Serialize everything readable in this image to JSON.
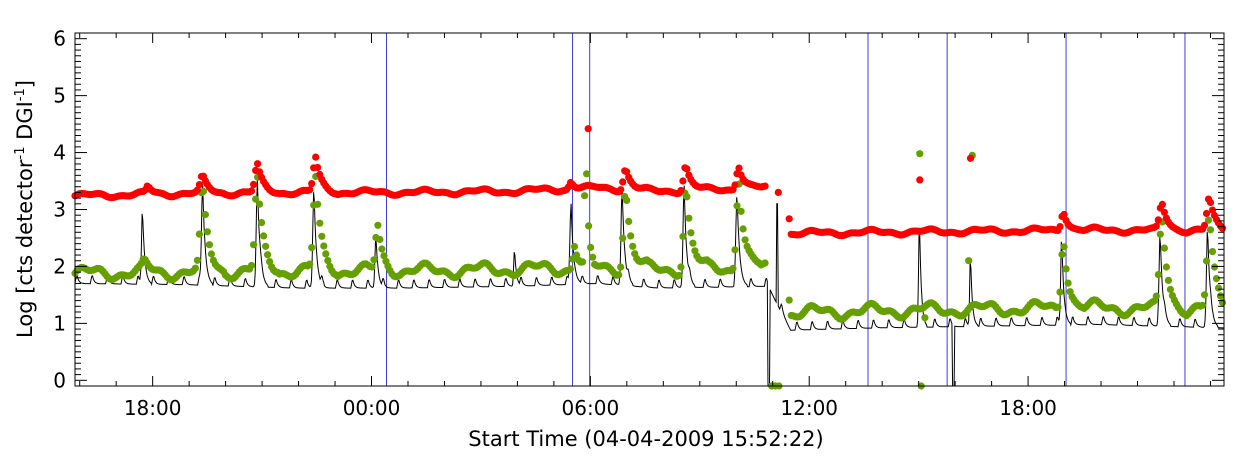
{
  "chart_data": {
    "type": "scatter",
    "title": "",
    "xlabel": "Start Time (04-04-2009 15:52:22)",
    "ylabel_parts": [
      "Log [cts detector",
      "-1",
      " DGI",
      "-1",
      "]"
    ],
    "x_units": "hours since 04-04-2009 15:52:22",
    "xlim": [
      0,
      31.5
    ],
    "ylim": [
      -0.1,
      6.1
    ],
    "x_ticks": [
      {
        "value": 2.1289,
        "label": "18:00"
      },
      {
        "value": 8.1289,
        "label": "00:00"
      },
      {
        "value": 14.1289,
        "label": "06:00"
      },
      {
        "value": 20.1289,
        "label": "12:00"
      },
      {
        "value": 26.1289,
        "label": "18:00"
      }
    ],
    "y_ticks": [
      {
        "value": 0,
        "label": "0"
      },
      {
        "value": 1,
        "label": "1"
      },
      {
        "value": 2,
        "label": "2"
      },
      {
        "value": 3,
        "label": "3"
      },
      {
        "value": 4,
        "label": "4"
      },
      {
        "value": 5,
        "label": "5"
      },
      {
        "value": 6,
        "label": "6"
      }
    ],
    "vertical_lines": [
      8.54,
      13.64,
      14.11,
      21.74,
      23.91,
      27.17,
      30.43
    ],
    "colors": {
      "red": "#ff0000",
      "green": "#66a000",
      "black": "#000000",
      "vline": "#3f3fd8",
      "frame": "#000000"
    },
    "series": [
      {
        "name": "red",
        "style": "dots",
        "baseline": [
          [
            0,
            3.24
          ],
          [
            3.0,
            3.28
          ],
          [
            6.0,
            3.3
          ],
          [
            9.0,
            3.3
          ],
          [
            12.0,
            3.32
          ],
          [
            14.3,
            3.38
          ],
          [
            16.0,
            3.32
          ],
          [
            19.0,
            3.38
          ],
          [
            19.5,
            3.4
          ],
          [
            19.62,
            2.58
          ],
          [
            22.0,
            2.6
          ],
          [
            25.0,
            2.62
          ],
          [
            28.0,
            2.64
          ],
          [
            31.5,
            2.62
          ]
        ],
        "wiggle": 0.035,
        "flares": [
          {
            "t": 2.0,
            "peak": 3.42,
            "w": 0.12
          },
          {
            "t": 3.5,
            "peak": 3.62,
            "w": 0.15
          },
          {
            "t": 5.0,
            "peak": 3.82,
            "w": 0.15
          },
          {
            "t": 6.6,
            "peak": 3.92,
            "w": 0.15
          },
          {
            "t": 13.6,
            "peak": 3.48,
            "w": 0.12
          },
          {
            "t": 15.1,
            "peak": 3.72,
            "w": 0.15
          },
          {
            "t": 16.75,
            "peak": 3.78,
            "w": 0.15
          },
          {
            "t": 18.2,
            "peak": 3.74,
            "w": 0.15
          },
          {
            "t": 27.1,
            "peak": 2.95,
            "w": 0.14
          },
          {
            "t": 29.8,
            "peak": 3.12,
            "w": 0.16
          },
          {
            "t": 31.1,
            "peak": 3.22,
            "w": 0.16
          }
        ],
        "outliers": [
          [
            14.07,
            4.42
          ],
          [
            19.28,
            3.3
          ],
          [
            23.16,
            3.52
          ],
          [
            24.55,
            3.9
          ]
        ]
      },
      {
        "name": "green",
        "style": "dots",
        "baseline": [
          [
            0,
            1.88
          ],
          [
            3.0,
            1.9
          ],
          [
            6.0,
            1.92
          ],
          [
            9.0,
            1.92
          ],
          [
            12.0,
            1.95
          ],
          [
            14.3,
            1.98
          ],
          [
            16.0,
            1.95
          ],
          [
            19.0,
            1.98
          ],
          [
            19.5,
            2.0
          ],
          [
            19.62,
            1.18
          ],
          [
            22.0,
            1.22
          ],
          [
            25.0,
            1.25
          ],
          [
            28.0,
            1.28
          ],
          [
            31.5,
            1.22
          ]
        ],
        "wiggle": 0.09,
        "flares": [
          {
            "t": 1.9,
            "peak": 2.15,
            "w": 0.12
          },
          {
            "t": 3.5,
            "peak": 3.5,
            "w": 0.15
          },
          {
            "t": 5.0,
            "peak": 3.62,
            "w": 0.15
          },
          {
            "t": 6.6,
            "peak": 3.58,
            "w": 0.15
          },
          {
            "t": 8.3,
            "peak": 2.75,
            "w": 0.14
          },
          {
            "t": 13.7,
            "peak": 2.35,
            "w": 0.12
          },
          {
            "t": 14.0,
            "peak": 4.42,
            "w": 0.06
          },
          {
            "t": 15.1,
            "peak": 3.38,
            "w": 0.15
          },
          {
            "t": 16.75,
            "peak": 3.45,
            "w": 0.15
          },
          {
            "t": 18.2,
            "peak": 3.5,
            "w": 0.15
          },
          {
            "t": 19.35,
            "peak": 3.98,
            "w": 0.05
          },
          {
            "t": 27.1,
            "peak": 2.48,
            "w": 0.14
          },
          {
            "t": 29.8,
            "peak": 2.88,
            "w": 0.16
          },
          {
            "t": 31.1,
            "peak": 2.92,
            "w": 0.16
          }
        ],
        "outliers": [
          [
            19.1,
            -0.1
          ],
          [
            19.2,
            -0.1
          ],
          [
            19.3,
            -0.1
          ],
          [
            23.16,
            3.98
          ],
          [
            23.3,
            1.1
          ],
          [
            24.6,
            3.95
          ],
          [
            24.5,
            2.1
          ],
          [
            23.2,
            -0.1
          ]
        ]
      },
      {
        "name": "black",
        "style": "line",
        "baseline": [
          [
            0,
            1.7
          ],
          [
            3.0,
            1.68
          ],
          [
            6.0,
            1.62
          ],
          [
            9.0,
            1.62
          ],
          [
            12.0,
            1.65
          ],
          [
            14.3,
            1.7
          ],
          [
            16.0,
            1.62
          ],
          [
            19.0,
            1.65
          ],
          [
            19.62,
            0.88
          ],
          [
            22.0,
            0.92
          ],
          [
            25.0,
            0.95
          ],
          [
            28.0,
            0.98
          ],
          [
            31.5,
            0.92
          ]
        ],
        "spike_period": 0.42,
        "spike_height": 0.28,
        "flares": [
          {
            "t": 1.85,
            "peak": 3.02,
            "w": 0.06
          },
          {
            "t": 3.5,
            "peak": 3.45,
            "w": 0.07
          },
          {
            "t": 5.0,
            "peak": 3.55,
            "w": 0.07
          },
          {
            "t": 6.55,
            "peak": 3.4,
            "w": 0.07
          },
          {
            "t": 8.25,
            "peak": 2.55,
            "w": 0.06
          },
          {
            "t": 12.05,
            "peak": 2.32,
            "w": 0.05
          },
          {
            "t": 13.6,
            "peak": 3.1,
            "w": 0.07
          },
          {
            "t": 15.0,
            "peak": 3.38,
            "w": 0.07
          },
          {
            "t": 16.7,
            "peak": 3.42,
            "w": 0.07
          },
          {
            "t": 18.15,
            "peak": 3.3,
            "w": 0.07
          },
          {
            "t": 23.15,
            "peak": 2.85,
            "w": 0.05
          },
          {
            "t": 24.55,
            "peak": 2.2,
            "w": 0.05
          },
          {
            "t": 27.05,
            "peak": 2.55,
            "w": 0.06
          },
          {
            "t": 29.75,
            "peak": 2.6,
            "w": 0.07
          },
          {
            "t": 31.05,
            "peak": 2.7,
            "w": 0.07
          }
        ]
      }
    ]
  }
}
